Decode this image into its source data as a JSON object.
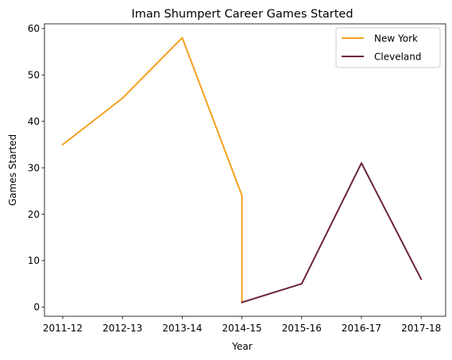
{
  "chart_data": {
    "type": "line",
    "title": "Iman Shumpert Career Games Started",
    "xlabel": "Year",
    "ylabel": "Games Started",
    "categories": [
      "2011-12",
      "2012-13",
      "2013-14",
      "2014-15",
      "2015-16",
      "2016-17",
      "2017-18"
    ],
    "yticks": [
      "0",
      "10",
      "20",
      "30",
      "40",
      "50",
      "60"
    ],
    "ylim": [
      -2,
      61
    ],
    "grid": false,
    "legend_position": "top-right",
    "series": [
      {
        "name": "New York",
        "color": "#f4a11f",
        "points": [
          {
            "x": "2011-12",
            "y": 35
          },
          {
            "x": "2012-13",
            "y": 45
          },
          {
            "x": "2013-14",
            "y": 58
          },
          {
            "x": "2014-15",
            "y": 24
          },
          {
            "x": "2014-15",
            "y": 1
          }
        ]
      },
      {
        "name": "Cleveland",
        "color": "#6b2240",
        "points": [
          {
            "x": "2014-15",
            "y": 1
          },
          {
            "x": "2015-16",
            "y": 5
          },
          {
            "x": "2016-17",
            "y": 31
          },
          {
            "x": "2017-18",
            "y": 6
          }
        ]
      }
    ]
  }
}
